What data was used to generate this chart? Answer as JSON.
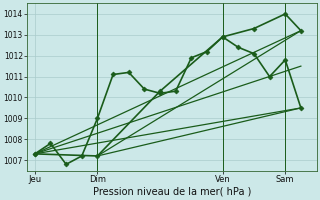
{
  "background_color": "#cce8e8",
  "grid_color": "#aacccc",
  "line_color": "#1a5c1a",
  "xlabel": "Pression niveau de la mer( hPa )",
  "ylim": [
    1006.5,
    1014.5
  ],
  "yticks": [
    1007,
    1008,
    1009,
    1010,
    1011,
    1012,
    1013,
    1014
  ],
  "xtick_labels": [
    "Jeu",
    "Dim",
    "Ven",
    "Sam"
  ],
  "xtick_positions": [
    0,
    16,
    48,
    64
  ],
  "xlim": [
    -2,
    72
  ],
  "series": [
    {
      "x": [
        0,
        4,
        8,
        12,
        16,
        20,
        24,
        28,
        32,
        36,
        40,
        44,
        48,
        52,
        56,
        60,
        64,
        68
      ],
      "y": [
        1007.3,
        1007.8,
        1006.8,
        1007.2,
        1009.0,
        1011.1,
        1011.2,
        1010.4,
        1010.2,
        1010.3,
        1011.9,
        1012.2,
        1012.9,
        1012.4,
        1012.1,
        1011.0,
        1011.8,
        1009.5
      ],
      "marker": "D",
      "marker_size": 2.5,
      "linewidth": 1.2,
      "linestyle": "-"
    },
    {
      "x": [
        0,
        16,
        32,
        48,
        56,
        64,
        68
      ],
      "y": [
        1007.3,
        1007.2,
        1010.3,
        1012.9,
        1013.3,
        1014.0,
        1013.2
      ],
      "marker": "D",
      "marker_size": 2.5,
      "linewidth": 1.2,
      "linestyle": "-"
    },
    {
      "x": [
        0,
        68
      ],
      "y": [
        1007.3,
        1013.2
      ],
      "marker": null,
      "linewidth": 0.9,
      "linestyle": "-"
    },
    {
      "x": [
        0,
        68
      ],
      "y": [
        1007.3,
        1011.5
      ],
      "marker": null,
      "linewidth": 0.9,
      "linestyle": "-"
    },
    {
      "x": [
        0,
        68
      ],
      "y": [
        1007.3,
        1009.5
      ],
      "marker": null,
      "linewidth": 0.9,
      "linestyle": "-"
    },
    {
      "x": [
        16,
        68
      ],
      "y": [
        1007.2,
        1013.2
      ],
      "marker": null,
      "linewidth": 0.9,
      "linestyle": "-"
    },
    {
      "x": [
        16,
        68
      ],
      "y": [
        1007.2,
        1009.5
      ],
      "marker": null,
      "linewidth": 0.9,
      "linestyle": "-"
    }
  ],
  "vlines": [
    16,
    48,
    64
  ]
}
